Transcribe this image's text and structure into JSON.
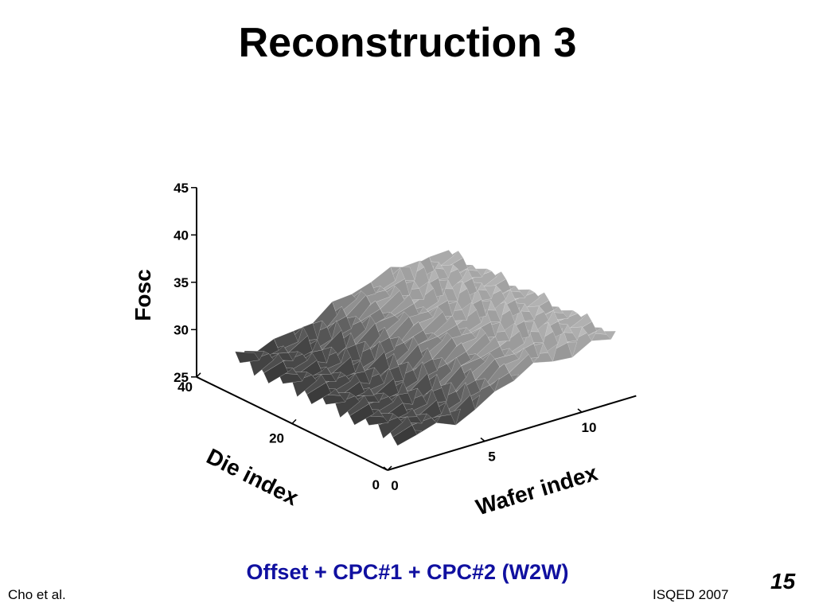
{
  "slide": {
    "title": "Reconstruction 3",
    "caption": "Offset + CPC#1 + CPC#2 (W2W)",
    "author": "Cho et al.",
    "venue": "ISQED 2007",
    "page_number": "15"
  },
  "chart_data": {
    "type": "surface",
    "zlabel": "Fosc",
    "ylabel": "Die index",
    "xlabel": "Wafer index",
    "zlim": [
      25,
      45
    ],
    "z_ticks": [
      "25",
      "30",
      "35",
      "40",
      "45"
    ],
    "y_ticks": [
      "0",
      "20",
      "40"
    ],
    "x_ticks": [
      "0",
      "5",
      "10"
    ],
    "x_range": [
      1,
      12
    ],
    "y_range": [
      1,
      36
    ],
    "z_base": 27.5,
    "z_gain": 4.2,
    "osc_amp": 1.2,
    "colormap": "gray"
  }
}
